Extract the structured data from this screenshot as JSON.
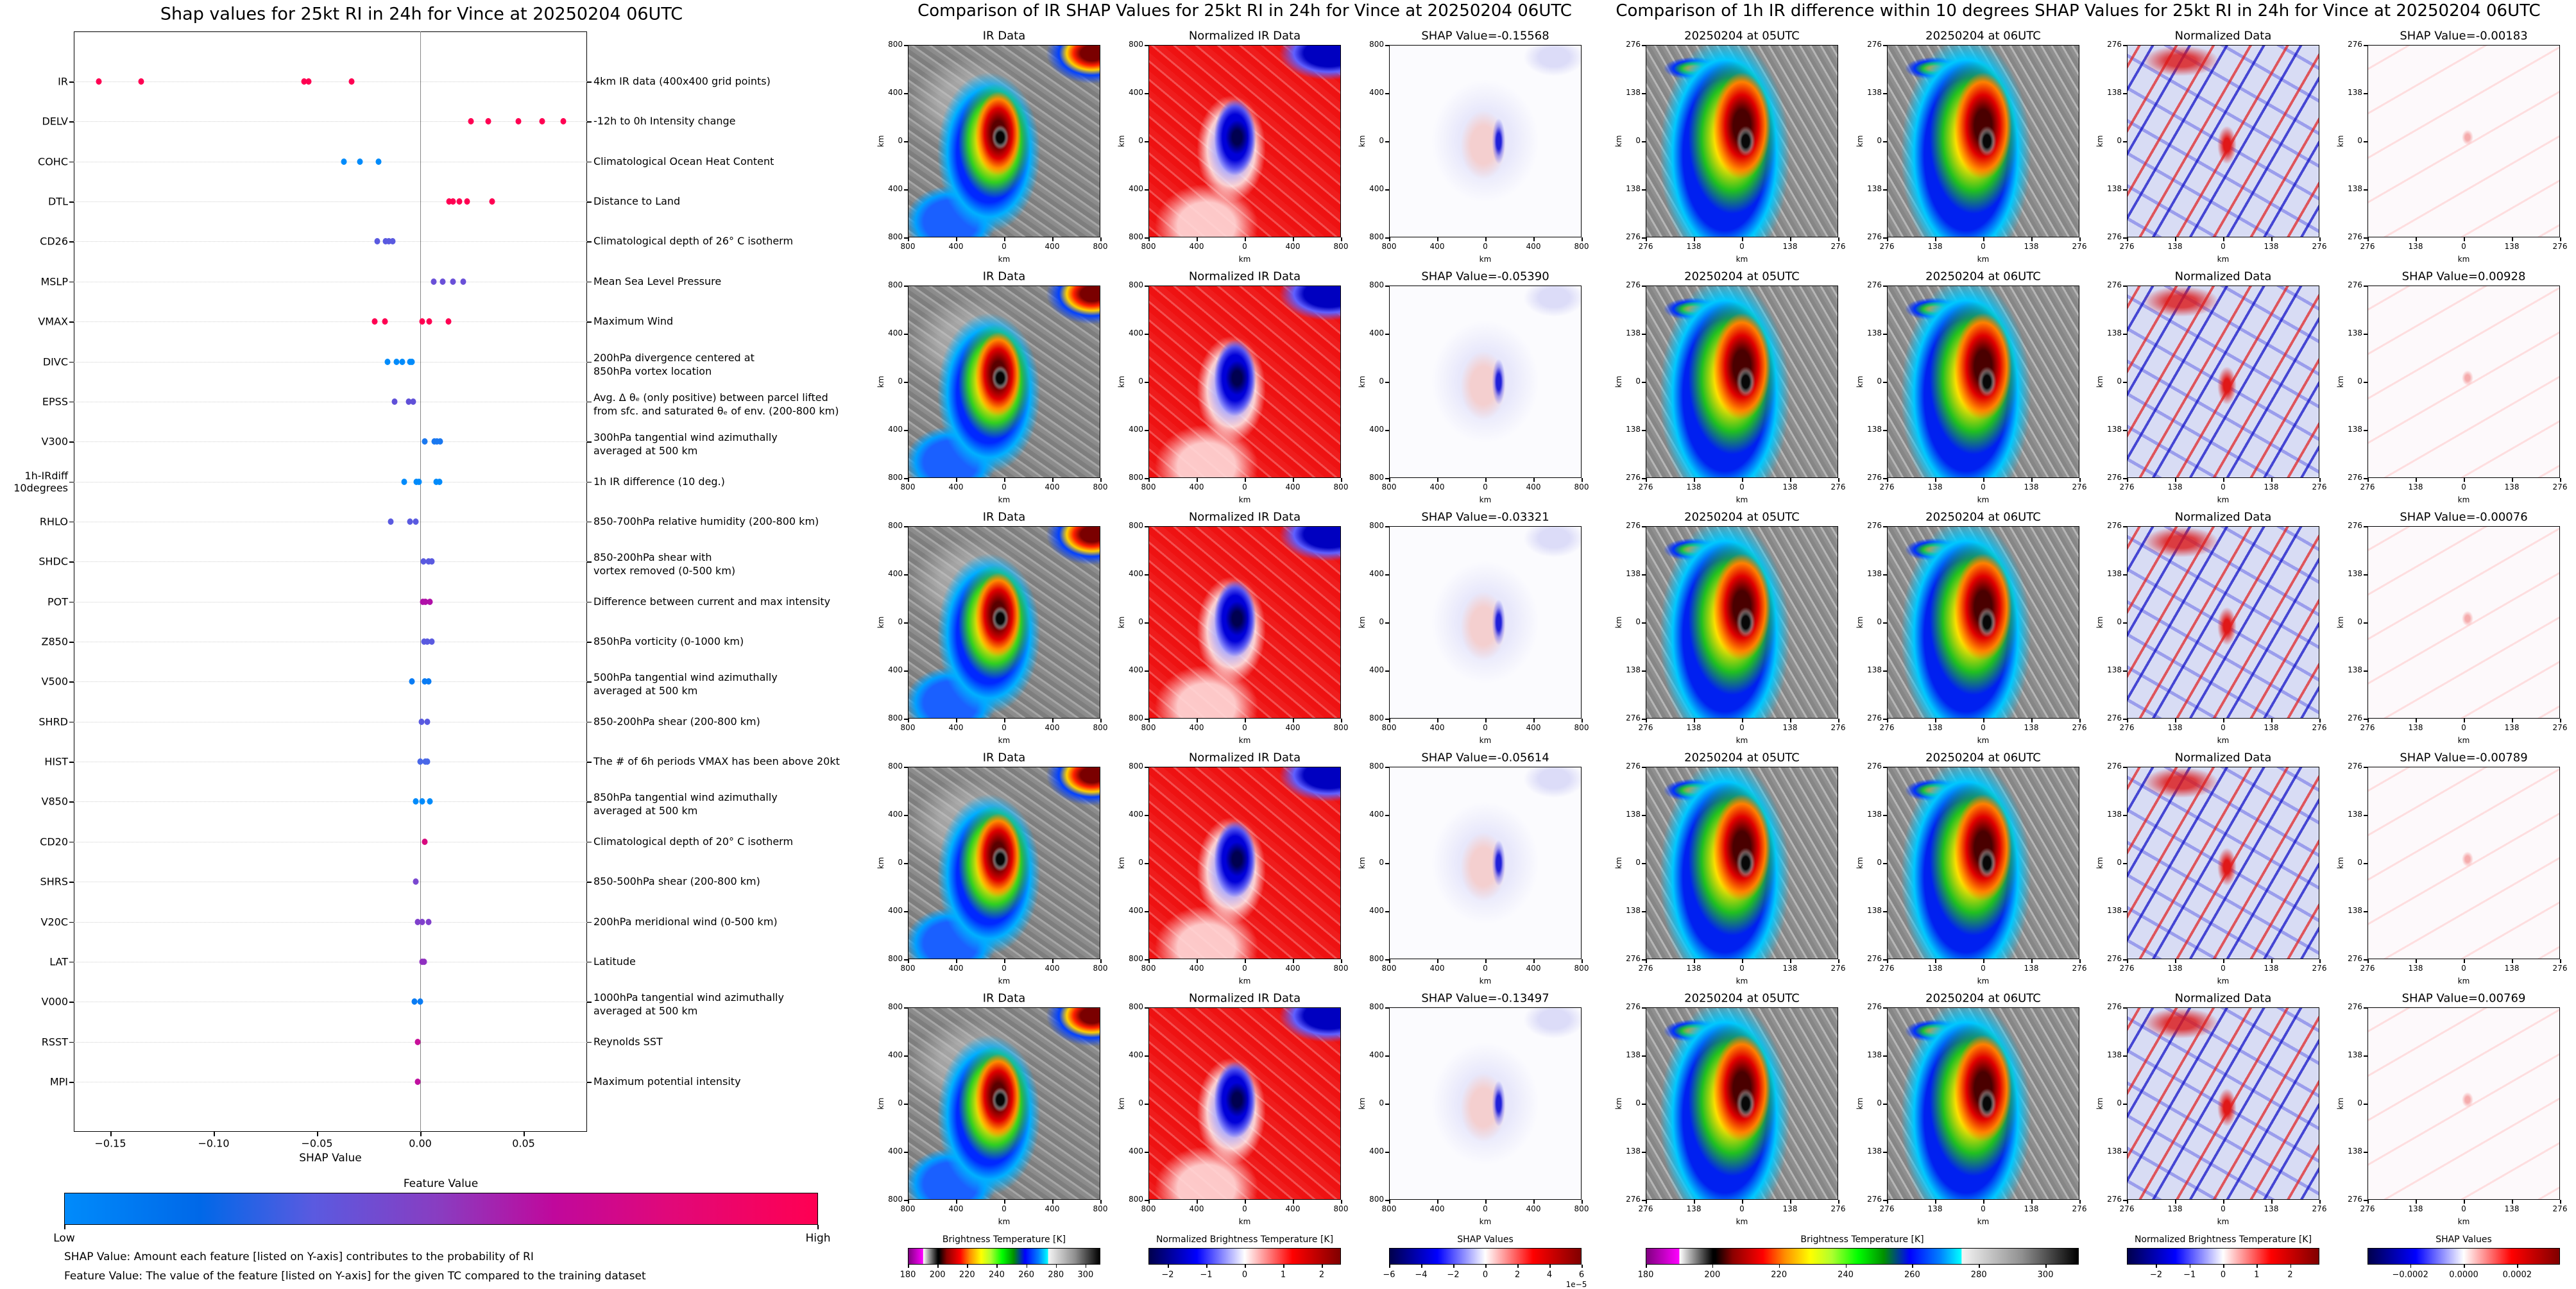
{
  "chart_data": {
    "type": "scatter",
    "title": "Shap values for 25kt RI in 24h for Vince at 20250204 06UTC",
    "xlabel": "SHAP Value",
    "ylabel": "",
    "xlim": [
      -0.168,
      0.081
    ],
    "x_ticks": [
      {
        "value": -0.15,
        "label": "−0.15"
      },
      {
        "value": -0.1,
        "label": "−0.10"
      },
      {
        "value": -0.05,
        "label": "−0.05"
      },
      {
        "value": 0.0,
        "label": "0.00"
      },
      {
        "value": 0.05,
        "label": "0.05"
      }
    ],
    "grid": "horizontal dotted",
    "features": [
      {
        "name": "IR",
        "description": "4km IR data (400x400 grid points)",
        "color": "#ff0052",
        "values": [
          -0.15568,
          -0.13497,
          -0.05614,
          -0.0539,
          -0.03321
        ]
      },
      {
        "name": "DELV",
        "description": "-12h to 0h Intensity change",
        "color": "#ff0052",
        "values": [
          0.0244,
          0.0329,
          0.0476,
          0.0591,
          0.0694
        ]
      },
      {
        "name": "COHC",
        "description": "Climatological Ocean Heat Content",
        "color": "#008bfb",
        "values": [
          -0.037,
          -0.0293,
          -0.0203
        ]
      },
      {
        "name": "DTL",
        "description": "Distance to Land",
        "color": "#ff0052",
        "values": [
          0.0141,
          0.0157,
          0.0188,
          0.0226,
          0.0347
        ]
      },
      {
        "name": "CD26",
        "description": "Climatological depth of 26° C isotherm",
        "color": "#5a5ae0",
        "values": [
          -0.0208,
          -0.0167,
          -0.0152,
          -0.0134
        ]
      },
      {
        "name": "MSLP",
        "description": "Mean Sea Level Pressure",
        "color": "#6a50d8",
        "values": [
          0.0064,
          0.011,
          0.0157,
          0.0208
        ]
      },
      {
        "name": "VMAX",
        "description": "Maximum Wind",
        "color": "#ff0052",
        "values": [
          -0.0221,
          -0.0172,
          0.0008,
          0.0044,
          0.0136
        ]
      },
      {
        "name": "DIVC",
        "description": "200hPa divergence centered at\n850hPa vortex location",
        "color": "#008bfb",
        "values": [
          -0.0159,
          -0.0116,
          -0.0087,
          -0.0051,
          -0.0039
        ]
      },
      {
        "name": "EPSS",
        "description": "Avg. Δ θₑ (only positive) between parcel lifted\nfrom sfc. and saturated θₑ of env. (200-800 km)",
        "color": "#6050d8",
        "values": [
          -0.0123,
          -0.0057,
          -0.0033
        ]
      },
      {
        "name": "V300",
        "description": "300hPa tangential wind azimuthally\naveraged at 500 km",
        "color": "#1a78f0",
        "values": [
          0.0021,
          0.0069,
          0.0082,
          0.0095
        ]
      },
      {
        "name": "1h-IRdiff\n10degrees",
        "description": "1h IR difference (10 deg.)",
        "color": "#008bfb",
        "values": [
          -0.00789,
          -0.00183,
          -0.00076,
          0.00769,
          0.00928
        ]
      },
      {
        "name": "RHLO",
        "description": "850-700hPa relative humidity (200-800 km)",
        "color": "#5a5ae0",
        "values": [
          -0.0144,
          -0.0051,
          -0.0021
        ]
      },
      {
        "name": "SHDC",
        "description": "850-200hPa shear with\nvortex removed (0-500 km)",
        "color": "#5a5ae0",
        "values": [
          0.0015,
          0.0041,
          0.0057
        ]
      },
      {
        "name": "POT",
        "description": "Difference between current and max intensity",
        "color": "#b010a8",
        "values": [
          0.0013,
          0.0026,
          0.0046
        ]
      },
      {
        "name": "Z850",
        "description": "850hPa vorticity (0-1000 km)",
        "color": "#5a5ae0",
        "values": [
          0.0018,
          0.0033,
          0.0057
        ]
      },
      {
        "name": "V500",
        "description": "500hPa tangential wind azimuthally\naveraged at 500 km",
        "color": "#0a7cf4",
        "values": [
          -0.0039,
          0.0021,
          0.0039
        ]
      },
      {
        "name": "SHRD",
        "description": "850-200hPa shear (200-800 km)",
        "color": "#5a5ae0",
        "values": [
          0.0005,
          0.0033
        ]
      },
      {
        "name": "HIST",
        "description": "The # of 6h periods VMAX has been above 20kt",
        "color": "#4a68e8",
        "values": [
          0.0,
          0.0026,
          0.0033
        ]
      },
      {
        "name": "V850",
        "description": "850hPa tangential wind azimuthally\naveraged at 500 km",
        "color": "#008bfb",
        "values": [
          -0.0021,
          0.0008,
          0.0046
        ]
      },
      {
        "name": "CD20",
        "description": "Climatological depth of 20° C isotherm",
        "color": "#d8087e",
        "values": [
          0.0023
        ]
      },
      {
        "name": "SHRS",
        "description": "850-500hPa shear (200-800 km)",
        "color": "#7a48d0",
        "values": [
          -0.0021
        ]
      },
      {
        "name": "V20C",
        "description": "200hPa meridional wind (0-500 km)",
        "color": "#8040cc",
        "values": [
          -0.0013,
          0.0008,
          0.0041
        ]
      },
      {
        "name": "LAT",
        "description": "Latitude",
        "color": "#9030c0",
        "values": [
          0.0008,
          0.0018
        ]
      },
      {
        "name": "V000",
        "description": "1000hPa tangential wind azimuthally\naveraged at 500 km",
        "color": "#0a7cf4",
        "values": [
          -0.0028,
          0.0
        ]
      },
      {
        "name": "RSST",
        "description": "Reynolds SST",
        "color": "#c8109a",
        "values": [
          -0.0013
        ]
      },
      {
        "name": "MPI",
        "description": "Maximum potential intensity",
        "color": "#c010a0",
        "values": [
          -0.0013
        ]
      }
    ],
    "colorbar": {
      "title": "Feature Value",
      "low": "Low",
      "high": "High",
      "low_color": "#008bfb",
      "high_color": "#ff0052"
    },
    "notes": [
      "SHAP Value: Amount each feature [listed on Y-axis] contributes to the probability of RI",
      "Feature Value: The value of the feature [listed on Y-axis] for the given TC compared to the training dataset"
    ]
  },
  "ir_comparison": {
    "title": "Comparison of IR SHAP Values for 25kt RI in 24h for Vince at 20250204 06UTC",
    "axis_label": "km",
    "x_ticks": [
      "800",
      "400",
      "0",
      "400",
      "800"
    ],
    "y_ticks": [
      "800",
      "400",
      "0",
      "400",
      "800"
    ],
    "rows": [
      {
        "titles": [
          "IR Data",
          "Normalized IR Data",
          "SHAP Value=-0.15568"
        ]
      },
      {
        "titles": [
          "IR Data",
          "Normalized IR Data",
          "SHAP Value=-0.05390"
        ]
      },
      {
        "titles": [
          "IR Data",
          "Normalized IR Data",
          "SHAP Value=-0.03321"
        ]
      },
      {
        "titles": [
          "IR Data",
          "Normalized IR Data",
          "SHAP Value=-0.05614"
        ]
      },
      {
        "titles": [
          "IR Data",
          "Normalized IR Data",
          "SHAP Value=-0.13497"
        ]
      }
    ],
    "colorbars": [
      {
        "title": "Brightness Temperature [K]",
        "range": [
          180,
          310
        ],
        "ticks": [
          {
            "value": 180,
            "label": "180"
          },
          {
            "value": 200,
            "label": "200"
          },
          {
            "value": 220,
            "label": "220"
          },
          {
            "value": 240,
            "label": "240"
          },
          {
            "value": 260,
            "label": "260"
          },
          {
            "value": 280,
            "label": "280"
          },
          {
            "value": 300,
            "label": "300"
          }
        ]
      },
      {
        "title": "Normalized Brightness Temperature [K]",
        "range": [
          -2.5,
          2.5
        ],
        "ticks": [
          {
            "value": -2,
            "label": "−2"
          },
          {
            "value": -1,
            "label": "−1"
          },
          {
            "value": 0,
            "label": "0"
          },
          {
            "value": 1,
            "label": "1"
          },
          {
            "value": 2,
            "label": "2"
          }
        ]
      },
      {
        "title": "SHAP Values",
        "range": [
          -6,
          6
        ],
        "ticks": [
          {
            "value": -6,
            "label": "−6"
          },
          {
            "value": -4,
            "label": "−4"
          },
          {
            "value": -2,
            "label": "−2"
          },
          {
            "value": 0,
            "label": "0"
          },
          {
            "value": 2,
            "label": "2"
          },
          {
            "value": 4,
            "label": "4"
          },
          {
            "value": 6,
            "label": "6"
          }
        ],
        "exponent": "1e−5"
      }
    ]
  },
  "irdiff_comparison": {
    "title": "Comparison of 1h IR difference within 10 degrees SHAP Values for 25kt RI in 24h for Vince at 20250204 06UTC",
    "axis_label": "km",
    "x_ticks": [
      "276",
      "138",
      "0",
      "138",
      "276"
    ],
    "y_ticks": [
      "276",
      "138",
      "0",
      "138",
      "276"
    ],
    "rows": [
      {
        "titles": [
          "20250204 at 05UTC",
          "20250204 at 06UTC",
          "Normalized Data",
          "SHAP Value=-0.00183"
        ]
      },
      {
        "titles": [
          "20250204 at 05UTC",
          "20250204 at 06UTC",
          "Normalized Data",
          "SHAP Value=0.00928"
        ]
      },
      {
        "titles": [
          "20250204 at 05UTC",
          "20250204 at 06UTC",
          "Normalized Data",
          "SHAP Value=-0.00076"
        ]
      },
      {
        "titles": [
          "20250204 at 05UTC",
          "20250204 at 06UTC",
          "Normalized Data",
          "SHAP Value=-0.00789"
        ]
      },
      {
        "titles": [
          "20250204 at 05UTC",
          "20250204 at 06UTC",
          "Normalized Data",
          "SHAP Value=0.00769"
        ]
      }
    ],
    "colorbars": [
      {
        "title": "Brightness Temperature [K]",
        "range": [
          180,
          310
        ],
        "ticks": [
          {
            "value": 180,
            "label": "180"
          },
          {
            "value": 200,
            "label": "200"
          },
          {
            "value": 220,
            "label": "220"
          },
          {
            "value": 240,
            "label": "240"
          },
          {
            "value": 260,
            "label": "260"
          },
          {
            "value": 280,
            "label": "280"
          },
          {
            "value": 300,
            "label": "300"
          }
        ]
      },
      {
        "title": "Normalized Brightness Temperature [K]",
        "range": [
          -2.87,
          2.87
        ],
        "ticks": [
          {
            "value": -2,
            "label": "−2"
          },
          {
            "value": -1,
            "label": "−1"
          },
          {
            "value": 0,
            "label": "0"
          },
          {
            "value": 1,
            "label": "1"
          },
          {
            "value": 2,
            "label": "2"
          }
        ]
      },
      {
        "title": "SHAP Values",
        "range": [
          -0.00036,
          0.00036
        ],
        "ticks": [
          {
            "value": -0.0002,
            "label": "−0.0002"
          },
          {
            "value": 0,
            "label": "0.0000"
          },
          {
            "value": 0.0002,
            "label": "0.0002"
          }
        ]
      }
    ]
  }
}
